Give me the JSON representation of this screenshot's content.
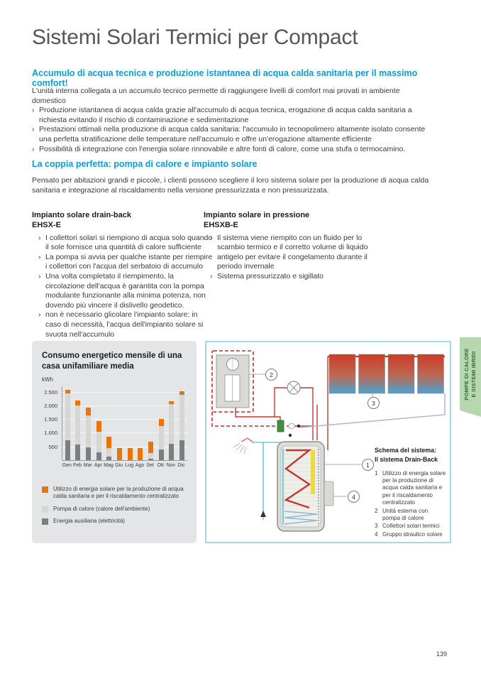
{
  "title": "Sistemi Solari Termici per Compact",
  "intro": {
    "heading": "Accumulo di acqua tecnica e produzione istantanea di acqua calda sanitaria per il massimo comfort!",
    "lead": "L'unità interna collegata a un accumulo tecnico permette di raggiungere livelli di comfort mai provati in ambiente domestico",
    "bullets": [
      "Produzione istantanea di acqua calda grazie all'accumulo di acqua tecnica, erogazione di acqua calda sanitaria a richiesta evitando il rischio di contaminazione e sedimentazione",
      "Prestazioni ottimali nella produzione di acqua calda sanitaria: l'accumulo in tecnopolimero altamente isolato consente una perfetta stratificazione delle temperature nell'accumulo e offre un'erogazione altamente efficiente",
      "Possibilità di integrazione con l'energia solare rinnovabile e altre fonti di calore, come una stufa o termocamino."
    ]
  },
  "couple": {
    "heading": "La coppia perfetta: pompa di calore e impianto solare",
    "paragraph": "Pensato per abitazioni grandi e piccole, i clienti possono scegliere il loro sistema solare per la produzione di acqua calda sanitaria e integrazione al riscaldamento nella versione pressurizzata e non pressurizzata."
  },
  "columns": [
    {
      "title": "Impianto solare drain-back",
      "code": "EHSX-E",
      "bullets": [
        "I collettori solari si riempiono di acqua solo quando il sole fornisce una quantità di calore sufficiente",
        "La pompa si avvia per qualche istante per riempire i collettori con l'acqua del serbatoio di accumulo",
        "Una volta completato il riempimento, la circolazione dell'acqua è garantita con la pompa modulante funzionante alla minima potenza, non dovendo più vincere il dislivello geodetico.",
        "non è necessario glicolare l'impianto solare: in caso di necessità, l'acqua dell'impianto solare si svuota nell'accumulo"
      ]
    },
    {
      "title": "Impianto solare in pressione",
      "code": "EHSXB-E",
      "bullets": [
        "Il sistema viene riempito con un fluido per lo scambio termico e il corretto volume di liquido antigelo per evitare il congelamento durante il periodo invernale",
        "Sistema pressurizzato e sigillato"
      ]
    }
  ],
  "chart_data": {
    "type": "bar",
    "stacked": true,
    "title": "Consumo energetico mensile di una casa unifamiliare media",
    "unit_label": "kWh",
    "categories": [
      "Gen",
      "Feb",
      "Mar",
      "Apr",
      "Mag",
      "Giu",
      "Lug",
      "Ago",
      "Set",
      "Ott",
      "Nov",
      "Dic"
    ],
    "series": [
      {
        "name": "Energia ausiliaria (elettricità)",
        "color": "#7c7e80",
        "values": [
          730,
          580,
          470,
          290,
          130,
          0,
          0,
          0,
          60,
          380,
          610,
          730
        ]
      },
      {
        "name": "Pompa di calore (calore dell'ambiente)",
        "color": "#d6d7d3",
        "values": [
          1700,
          1430,
          1170,
          740,
          310,
          0,
          0,
          0,
          190,
          870,
          1450,
          1670
        ]
      },
      {
        "name": "Utilizzo di energia solare per la produzione di acqua calda sanitaria e per il riscaldamento centralizzato",
        "color": "#ec7405",
        "values": [
          150,
          170,
          290,
          390,
          430,
          450,
          450,
          450,
          420,
          250,
          100,
          130
        ]
      }
    ],
    "yticks": [
      500,
      1000,
      1500,
      2000,
      2500
    ],
    "ytick_labels": [
      "500",
      "1.000",
      "1.500",
      "2.000",
      "2.500"
    ],
    "ylim": [
      0,
      2700
    ],
    "legend_order": [
      2,
      1,
      0
    ],
    "grid": true,
    "legend_position": "below"
  },
  "diagram": {
    "schema_title_line1": "Schema del sistema:",
    "schema_title_line2": "Il sistema Drain-Back",
    "callouts": [
      "1",
      "2",
      "3",
      "4"
    ],
    "items": [
      {
        "n": "1",
        "t": "Utilizzo di energia solare per la produzione di acqua calda sanitaria e per il riscaldamento centralizzato"
      },
      {
        "n": "2",
        "t": "Unità esterna con pompa di calore"
      },
      {
        "n": "3",
        "t": "Collettori solari termici"
      },
      {
        "n": "4",
        "t": "Gruppo idraulico solare"
      }
    ]
  },
  "side_tab": {
    "line1": "POMPE DI CALORE",
    "line2": "E SISTEMI IBRIDI"
  },
  "page": {
    "number": "139"
  },
  "colors": {
    "accent_blue": "#0e9bd6",
    "solar_orange": "#ec7405",
    "heat_pump_gray": "#d6d7d3",
    "aux_gray": "#7c7e80",
    "tab_green_bg": "#b7d7b0",
    "tab_green_text": "#2f6e3e",
    "diagram_border": "#a9d6ea"
  }
}
